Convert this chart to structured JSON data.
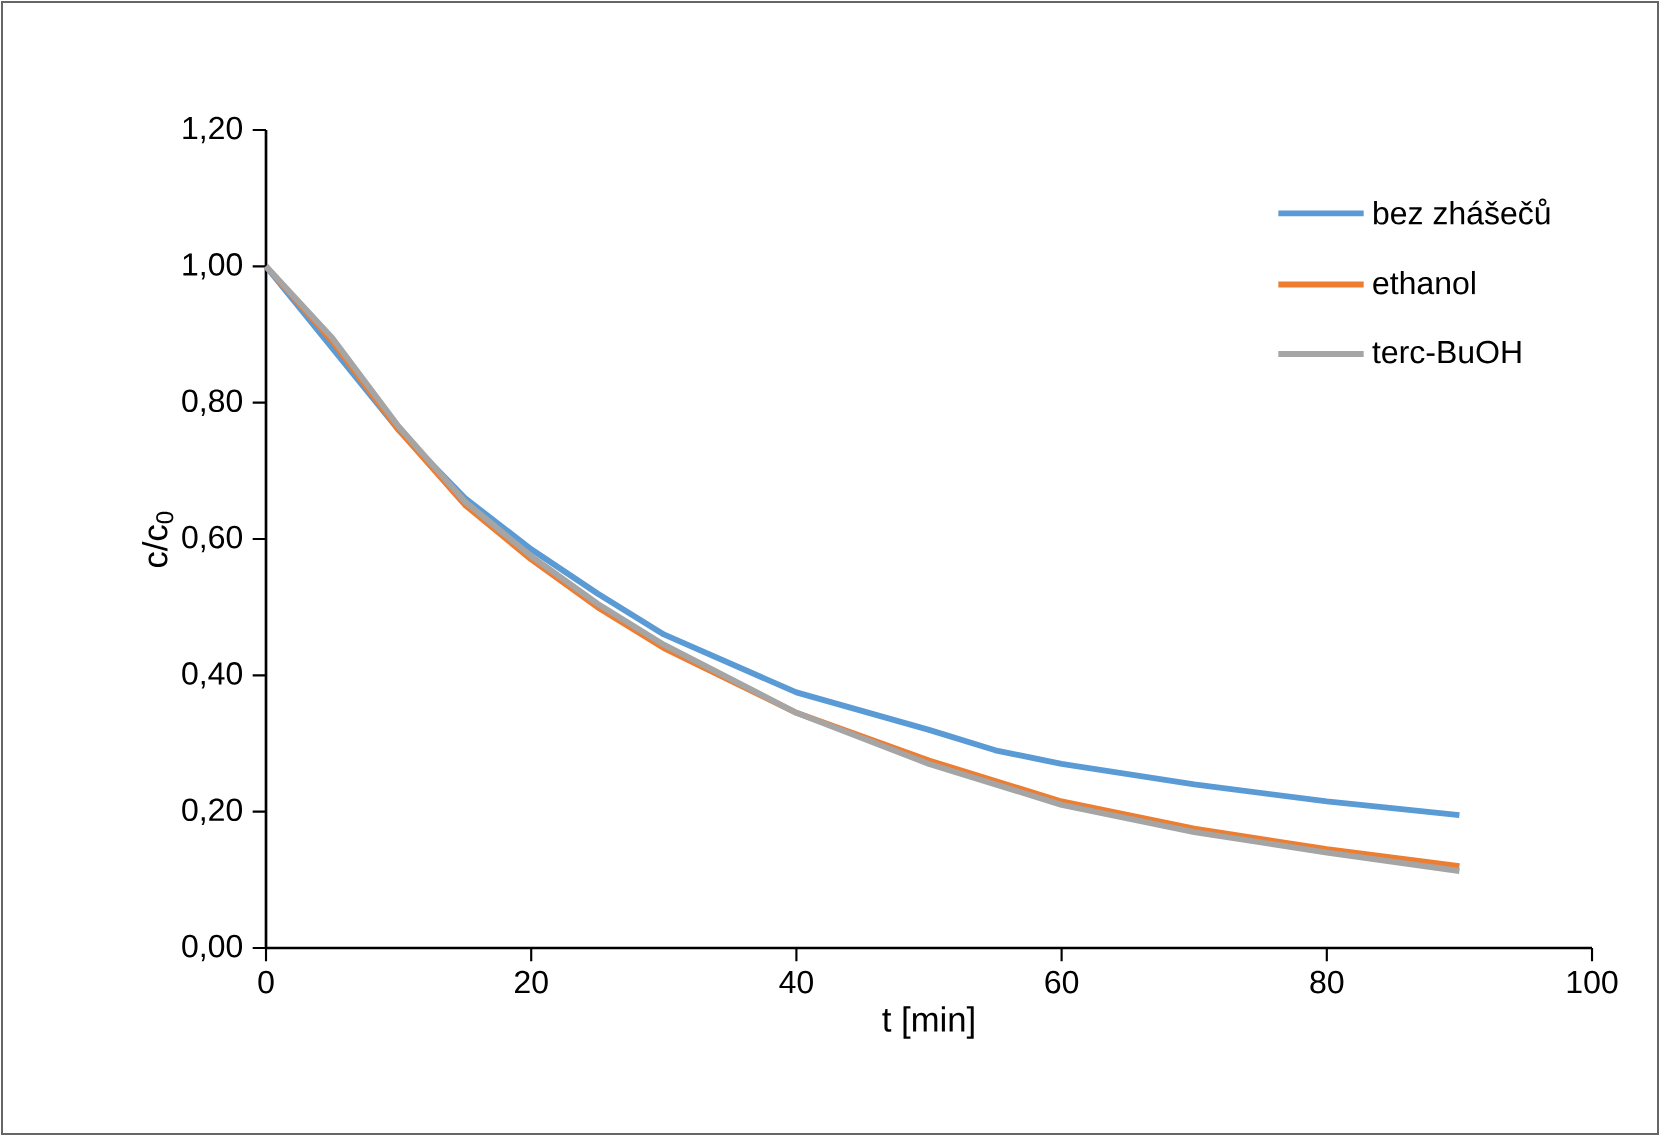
{
  "chart_data": {
    "type": "line",
    "xlabel": "t [min]",
    "ylabel": "c/c$_{0}$",
    "x": [
      0,
      5,
      10,
      15,
      20,
      25,
      30,
      40,
      50,
      55,
      60,
      70,
      80,
      90
    ],
    "series": [
      {
        "name": "bez zhášečů",
        "color": "#5b9bd5",
        "values": [
          1.0,
          0.88,
          0.76,
          0.66,
          0.585,
          0.52,
          0.46,
          0.375,
          0.32,
          0.29,
          0.27,
          0.24,
          0.215,
          0.195
        ]
      },
      {
        "name": "ethanol",
        "color": "#ed7d31",
        "values": [
          1.0,
          0.89,
          0.76,
          0.65,
          0.57,
          0.5,
          0.44,
          0.345,
          0.275,
          0.245,
          0.215,
          0.175,
          0.145,
          0.12
        ]
      },
      {
        "name": "terc-BuOH",
        "color": "#a5a5a5",
        "values": [
          1.0,
          0.895,
          0.765,
          0.655,
          0.575,
          0.505,
          0.445,
          0.345,
          0.27,
          0.24,
          0.21,
          0.17,
          0.14,
          0.113
        ]
      }
    ],
    "xlim": [
      0,
      100
    ],
    "xticks": [
      0,
      20,
      40,
      60,
      80,
      100
    ],
    "ylim": [
      0,
      1.2
    ],
    "yticks": [
      {
        "value": 0,
        "label": "0,00"
      },
      {
        "value": 0.2,
        "label": "0,20"
      },
      {
        "value": 0.4,
        "label": "0,40"
      },
      {
        "value": 0.6,
        "label": "0,60"
      },
      {
        "value": 0.8,
        "label": "0,80"
      },
      {
        "value": 1.0,
        "label": "1,00"
      },
      {
        "value": 1.2,
        "label": "1,20"
      }
    ],
    "grid": false,
    "legend": "top right",
    "marker": "none",
    "line_style": "solid"
  }
}
